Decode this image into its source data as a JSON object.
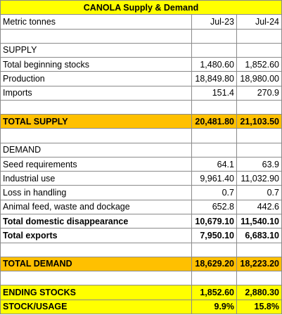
{
  "title": "CANOLA Supply & Demand",
  "header": {
    "label": "Metric tonnes",
    "columns": [
      "Jul-23",
      "Jul-24"
    ]
  },
  "supply": {
    "heading": "SUPPLY",
    "rows": [
      {
        "label": "Total beginning stocks",
        "values": [
          "1,480.60",
          "1,852.60"
        ]
      },
      {
        "label": "Production",
        "values": [
          "18,849.80",
          "18,980.00"
        ]
      },
      {
        "label": "Imports",
        "values": [
          "151.4",
          "270.9"
        ]
      }
    ]
  },
  "total_supply": {
    "label": "TOTAL SUPPLY",
    "values": [
      "20,481.80",
      "21,103.50"
    ]
  },
  "demand": {
    "heading": "DEMAND",
    "rows": [
      {
        "label": "Seed requirements",
        "values": [
          "64.1",
          "63.9"
        ]
      },
      {
        "label": "Industrial use",
        "values": [
          "9,961.40",
          "11,032.90"
        ]
      },
      {
        "label": "Loss in handling",
        "values": [
          "0.7",
          "0.7"
        ]
      },
      {
        "label": "Animal feed, waste and dockage",
        "values": [
          "652.8",
          "442.6"
        ]
      },
      {
        "label": "Total domestic disappearance",
        "values": [
          "10,679.10",
          "11,540.10"
        ]
      },
      {
        "label": "Total exports",
        "values": [
          "7,950.10",
          "6,683.10"
        ]
      }
    ]
  },
  "total_demand": {
    "label": "TOTAL DEMAND",
    "values": [
      "18,629.20",
      "18,223.20"
    ]
  },
  "ending_stocks": {
    "label": "ENDING STOCKS",
    "values": [
      "1,852.60",
      "2,880.30"
    ]
  },
  "stock_usage": {
    "label": "STOCK/USAGE",
    "values": [
      "9.9%",
      "15.8%"
    ]
  }
}
